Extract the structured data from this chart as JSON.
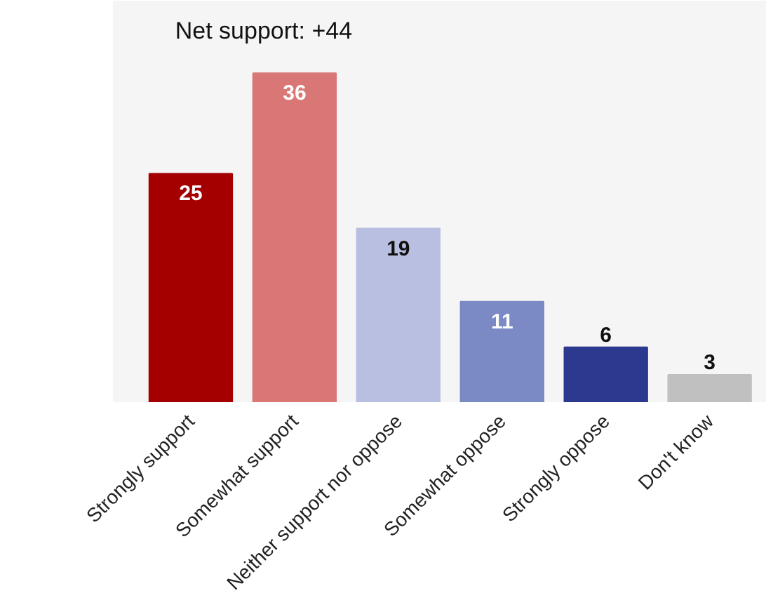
{
  "chart_data": {
    "type": "bar",
    "categories": [
      "Strongly support",
      "Somewhat support",
      "Neither support nor oppose",
      "Somewhat oppose",
      "Strongly oppose",
      "Don't know"
    ],
    "values": [
      25,
      36,
      19,
      11,
      6,
      3
    ],
    "colors": [
      "#a50000",
      "#d97676",
      "#b9bfe0",
      "#7b89c4",
      "#2b3a8f",
      "#c0c0c0"
    ],
    "data_labels": true,
    "annotations": [
      "Net support: +44"
    ],
    "grid": false
  }
}
